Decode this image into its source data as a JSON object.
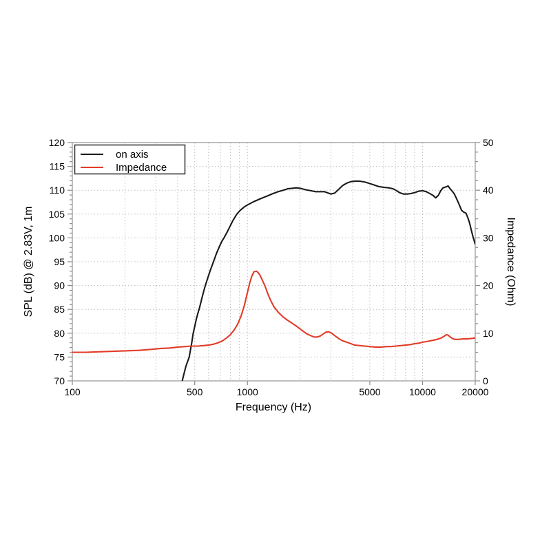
{
  "page": {
    "background": "#ffffff"
  },
  "chart_data": {
    "type": "line",
    "title": "",
    "x_axis": {
      "label": "Frequency (Hz)",
      "scale": "log",
      "min": 100,
      "max": 20000,
      "major_ticks": [
        100,
        500,
        1000,
        5000,
        10000,
        20000
      ],
      "major_tick_labels": [
        "100",
        "500",
        "1000",
        "5000",
        "10000",
        "20000"
      ],
      "gridline_values": [
        200,
        300,
        400,
        500,
        600,
        700,
        800,
        900,
        1000,
        2000,
        3000,
        4000,
        5000,
        6000,
        7000,
        8000,
        9000,
        10000
      ]
    },
    "y_left": {
      "label": "SPL (dB) @ 2.83V, 1m",
      "min": 70,
      "max": 120,
      "major_step": 5,
      "minor_step": 1,
      "major_tick_labels": [
        "70",
        "75",
        "80",
        "85",
        "90",
        "95",
        "100",
        "105",
        "110",
        "115",
        "120"
      ]
    },
    "y_right": {
      "label": "Impedance (Ohm)",
      "min": 0,
      "max": 50,
      "major_step": 10,
      "minor_step": 2,
      "major_tick_labels": [
        "0",
        "10",
        "20",
        "30",
        "40",
        "50"
      ]
    },
    "grid": {
      "style": "dotted",
      "color": "#bdbdbd"
    },
    "frame_color": "#9a9a9a",
    "tick_color": "#8a8a8a",
    "legend": {
      "position": "top-left",
      "border_color": "#3a3a3a",
      "background": "#ffffff"
    },
    "series": [
      {
        "name": "on axis",
        "axis": "left",
        "color": "#1a1a1a",
        "points": [
          [
            420,
            69.3
          ],
          [
            432,
            71.2
          ],
          [
            445,
            73.0
          ],
          [
            458,
            74.3
          ],
          [
            465,
            75.0
          ],
          [
            472,
            76.3
          ],
          [
            480,
            77.8
          ],
          [
            490,
            80.0
          ],
          [
            500,
            81.4
          ],
          [
            512,
            83.1
          ],
          [
            525,
            84.6
          ],
          [
            530,
            85.0
          ],
          [
            545,
            86.8
          ],
          [
            560,
            88.5
          ],
          [
            575,
            90.0
          ],
          [
            595,
            91.7
          ],
          [
            615,
            93.3
          ],
          [
            640,
            95.0
          ],
          [
            665,
            96.7
          ],
          [
            690,
            98.1
          ],
          [
            715,
            99.3
          ],
          [
            735,
            100.0
          ],
          [
            765,
            101.2
          ],
          [
            795,
            102.4
          ],
          [
            825,
            103.6
          ],
          [
            870,
            105.0
          ],
          [
            910,
            105.8
          ],
          [
            960,
            106.5
          ],
          [
            1010,
            107.0
          ],
          [
            1100,
            107.7
          ],
          [
            1200,
            108.3
          ],
          [
            1300,
            108.8
          ],
          [
            1400,
            109.3
          ],
          [
            1500,
            109.7
          ],
          [
            1600,
            110.0
          ],
          [
            1700,
            110.3
          ],
          [
            1800,
            110.4
          ],
          [
            1900,
            110.5
          ],
          [
            2000,
            110.4
          ],
          [
            2150,
            110.1
          ],
          [
            2300,
            109.9
          ],
          [
            2450,
            109.7
          ],
          [
            2600,
            109.7
          ],
          [
            2750,
            109.7
          ],
          [
            2900,
            109.4
          ],
          [
            3000,
            109.2
          ],
          [
            3150,
            109.4
          ],
          [
            3300,
            110.1
          ],
          [
            3500,
            111.0
          ],
          [
            3700,
            111.5
          ],
          [
            3900,
            111.8
          ],
          [
            4100,
            111.9
          ],
          [
            4400,
            111.9
          ],
          [
            4700,
            111.7
          ],
          [
            5000,
            111.4
          ],
          [
            5300,
            111.1
          ],
          [
            5600,
            110.8
          ],
          [
            6000,
            110.6
          ],
          [
            6400,
            110.5
          ],
          [
            6800,
            110.3
          ],
          [
            7100,
            109.9
          ],
          [
            7400,
            109.5
          ],
          [
            7800,
            109.2
          ],
          [
            8200,
            109.2
          ],
          [
            8600,
            109.3
          ],
          [
            9000,
            109.5
          ],
          [
            9500,
            109.8
          ],
          [
            10000,
            109.9
          ],
          [
            10500,
            109.7
          ],
          [
            11000,
            109.3
          ],
          [
            11500,
            108.9
          ],
          [
            11900,
            108.4
          ],
          [
            12300,
            108.9
          ],
          [
            12700,
            109.9
          ],
          [
            13100,
            110.5
          ],
          [
            13600,
            110.7
          ],
          [
            14000,
            110.9
          ],
          [
            14300,
            110.4
          ],
          [
            14700,
            109.9
          ],
          [
            15200,
            109.2
          ],
          [
            15700,
            108.1
          ],
          [
            16200,
            107.0
          ],
          [
            16700,
            105.8
          ],
          [
            17200,
            105.4
          ],
          [
            17700,
            105.2
          ],
          [
            18200,
            104.1
          ],
          [
            18600,
            103.0
          ],
          [
            19000,
            101.6
          ],
          [
            19400,
            100.3
          ],
          [
            19700,
            99.5
          ],
          [
            20000,
            98.7
          ]
        ]
      },
      {
        "name": "Impedance",
        "axis": "right",
        "color": "#e23b28",
        "points": [
          [
            100,
            6.0
          ],
          [
            120,
            6.0
          ],
          [
            140,
            6.1
          ],
          [
            170,
            6.2
          ],
          [
            200,
            6.3
          ],
          [
            240,
            6.4
          ],
          [
            280,
            6.6
          ],
          [
            320,
            6.8
          ],
          [
            360,
            6.9
          ],
          [
            400,
            7.1
          ],
          [
            440,
            7.2
          ],
          [
            480,
            7.3
          ],
          [
            520,
            7.3
          ],
          [
            560,
            7.4
          ],
          [
            600,
            7.5
          ],
          [
            640,
            7.7
          ],
          [
            680,
            8.0
          ],
          [
            720,
            8.4
          ],
          [
            760,
            9.0
          ],
          [
            800,
            9.7
          ],
          [
            840,
            10.7
          ],
          [
            880,
            11.9
          ],
          [
            920,
            13.6
          ],
          [
            960,
            15.8
          ],
          [
            1000,
            18.5
          ],
          [
            1030,
            20.5
          ],
          [
            1060,
            22.0
          ],
          [
            1090,
            22.9
          ],
          [
            1130,
            23.0
          ],
          [
            1170,
            22.4
          ],
          [
            1210,
            21.3
          ],
          [
            1260,
            19.9
          ],
          [
            1310,
            18.2
          ],
          [
            1360,
            16.8
          ],
          [
            1420,
            15.5
          ],
          [
            1500,
            14.4
          ],
          [
            1600,
            13.4
          ],
          [
            1700,
            12.7
          ],
          [
            1800,
            12.1
          ],
          [
            1900,
            11.5
          ],
          [
            2000,
            10.9
          ],
          [
            2100,
            10.3
          ],
          [
            2200,
            9.8
          ],
          [
            2300,
            9.5
          ],
          [
            2400,
            9.2
          ],
          [
            2500,
            9.2
          ],
          [
            2600,
            9.4
          ],
          [
            2700,
            9.8
          ],
          [
            2800,
            10.2
          ],
          [
            2900,
            10.3
          ],
          [
            3000,
            10.1
          ],
          [
            3100,
            9.7
          ],
          [
            3200,
            9.3
          ],
          [
            3350,
            8.8
          ],
          [
            3500,
            8.4
          ],
          [
            3700,
            8.1
          ],
          [
            3900,
            7.8
          ],
          [
            4100,
            7.5
          ],
          [
            4400,
            7.4
          ],
          [
            4700,
            7.3
          ],
          [
            5000,
            7.2
          ],
          [
            5400,
            7.1
          ],
          [
            5800,
            7.1
          ],
          [
            6200,
            7.2
          ],
          [
            6600,
            7.2
          ],
          [
            7000,
            7.3
          ],
          [
            7500,
            7.4
          ],
          [
            8000,
            7.5
          ],
          [
            8500,
            7.6
          ],
          [
            9000,
            7.8
          ],
          [
            9500,
            7.9
          ],
          [
            10000,
            8.1
          ],
          [
            10700,
            8.3
          ],
          [
            11400,
            8.5
          ],
          [
            12100,
            8.7
          ],
          [
            12800,
            9.0
          ],
          [
            13300,
            9.4
          ],
          [
            13700,
            9.7
          ],
          [
            14000,
            9.6
          ],
          [
            14400,
            9.2
          ],
          [
            14800,
            8.9
          ],
          [
            15300,
            8.7
          ],
          [
            16000,
            8.7
          ],
          [
            17000,
            8.8
          ],
          [
            18000,
            8.8
          ],
          [
            19000,
            8.9
          ],
          [
            20000,
            9.0
          ]
        ]
      }
    ]
  }
}
